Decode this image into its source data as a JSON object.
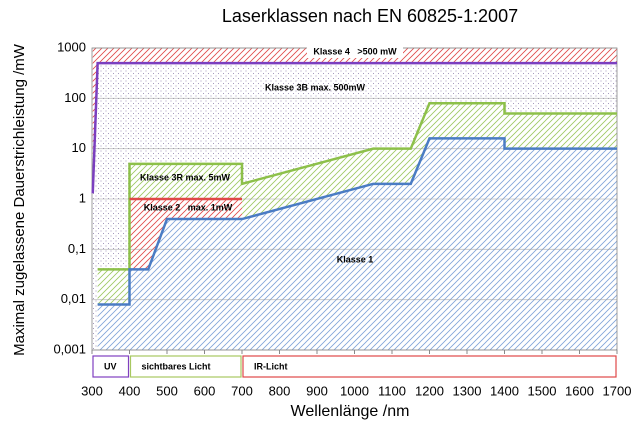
{
  "chart_data": {
    "type": "line",
    "title": "Laserklassen nach EN 60825-1:2007",
    "xlabel": "Wellenlänge /nm",
    "ylabel": "Maximal zugelassene Dauerstrichleistung /mW",
    "log_y": true,
    "grid": true,
    "xlim": [
      300,
      1700
    ],
    "ylim": [
      0.001,
      1000
    ],
    "xticks": [
      300,
      400,
      500,
      600,
      700,
      800,
      900,
      1000,
      1100,
      1200,
      1300,
      1400,
      1500,
      1600,
      1700
    ],
    "yticks": [
      {
        "value": 0.001,
        "label": "0,001"
      },
      {
        "value": 0.01,
        "label": "0,01"
      },
      {
        "value": 0.1,
        "label": "0,1"
      },
      1,
      10,
      100,
      1000
    ],
    "series": [
      {
        "color": "#7b3fbf",
        "x": [
          302,
          315,
          1700
        ],
        "values": [
          1.3,
          500,
          500
        ]
      },
      {
        "color": "#8dc04a",
        "x": [
          315,
          400,
          400,
          700,
          700,
          1050,
          1150,
          1200,
          1400,
          1400,
          1700
        ],
        "values": [
          0.04,
          0.04,
          5,
          5,
          2,
          10,
          10,
          80,
          80,
          50,
          50
        ]
      },
      {
        "color": "#e04848",
        "x": [
          400,
          700
        ],
        "values": [
          1,
          1
        ]
      },
      {
        "color": "#4a7cc4",
        "x": [
          315,
          400,
          400,
          450,
          500,
          700,
          1050,
          1150,
          1200,
          1400,
          1400,
          1700
        ],
        "values": [
          0.008,
          0.008,
          0.04,
          0.04,
          0.4,
          0.4,
          2,
          2,
          16,
          16,
          10,
          10
        ]
      }
    ],
    "annotations": [
      "Klasse 4   >500 mW",
      "Klasse 3B max. 500mW",
      "Klasse 3R max. 5mW",
      "Klasse 2   max. 1mW",
      "Klasse 1"
    ],
    "bands": [
      {
        "label": "UV",
        "start": 300,
        "end": 400,
        "color": "#8040c0"
      },
      {
        "label": "sichtbares Licht",
        "start": 400,
        "end": 700,
        "color": "#a8c860"
      },
      {
        "label": "IR-Licht",
        "start": 700,
        "end": 1700,
        "color": "#e04848"
      }
    ]
  }
}
